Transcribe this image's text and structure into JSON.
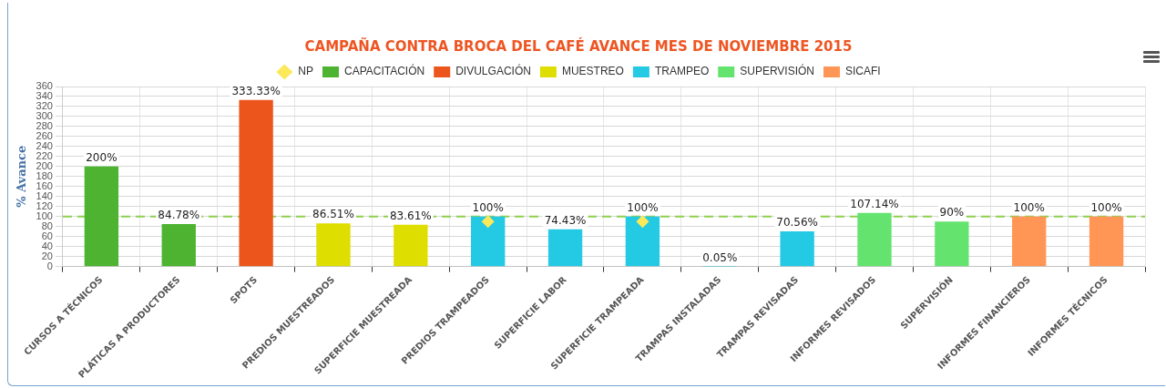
{
  "chart_data": {
    "type": "bar",
    "title": "CAMPAÑA CONTRA BROCA DEL CAFÉ AVANCE MES DE NOVIEMBRE 2015",
    "ylabel": "% Avance",
    "categories": [
      "CURSOS A TÉCNICOS",
      "PLÁTICAS A PRODUCTORES",
      "SPOTS",
      "PREDIOS MUESTREADOS",
      "SUPERFICIE MUESTREADA",
      "PREDIOS TRAMPEADOS",
      "SUPERFICIE LABOR",
      "SUPERFICIE TRAMPEADA",
      "TRAMPAS INSTALADAS",
      "TRAMPAS REVISADAS",
      "INFORMES REVISADOS",
      "SUPERVISIÓN",
      "INFORMES FINANCIEROS",
      "INFORMES TÉCNICOS"
    ],
    "series": [
      {
        "name": "CAPACITACIÓN",
        "color": "#4db331",
        "values": [
          200,
          84.78,
          null,
          null,
          null,
          null,
          null,
          null,
          null,
          null,
          null,
          null,
          null,
          null
        ],
        "value_labels": [
          "200%",
          "84.78%",
          null,
          null,
          null,
          null,
          null,
          null,
          null,
          null,
          null,
          null,
          null,
          null
        ]
      },
      {
        "name": "DIVULGACIÓN",
        "color": "#ec561c",
        "values": [
          null,
          null,
          333.33,
          null,
          null,
          null,
          null,
          null,
          null,
          null,
          null,
          null,
          null,
          null
        ],
        "value_labels": [
          null,
          null,
          "333.33%",
          null,
          null,
          null,
          null,
          null,
          null,
          null,
          null,
          null,
          null,
          null
        ]
      },
      {
        "name": "MUESTREO",
        "color": "#dede00",
        "values": [
          null,
          null,
          null,
          86.51,
          83.61,
          null,
          null,
          null,
          null,
          null,
          null,
          null,
          null,
          null
        ],
        "value_labels": [
          null,
          null,
          null,
          "86.51%",
          "83.61%",
          null,
          null,
          null,
          null,
          null,
          null,
          null,
          null,
          null
        ]
      },
      {
        "name": "TRAMPEO",
        "color": "#24cae3",
        "values": [
          null,
          null,
          null,
          null,
          null,
          100,
          74.43,
          100,
          0.05,
          70.56,
          null,
          null,
          null,
          null
        ],
        "value_labels": [
          null,
          null,
          null,
          null,
          null,
          "100%",
          "74.43%",
          "100%",
          "0.05%",
          "70.56%",
          null,
          null,
          null,
          null
        ]
      },
      {
        "name": "SUPERVISIÓN",
        "color": "#65e36f",
        "values": [
          null,
          null,
          null,
          null,
          null,
          null,
          null,
          null,
          null,
          null,
          107.14,
          90,
          null,
          null
        ],
        "value_labels": [
          null,
          null,
          null,
          null,
          null,
          null,
          null,
          null,
          null,
          null,
          "107.14%",
          "90%",
          null,
          null
        ]
      },
      {
        "name": "SICAFI",
        "color": "#ff9655",
        "values": [
          null,
          null,
          null,
          null,
          null,
          null,
          null,
          null,
          null,
          null,
          null,
          null,
          100,
          100
        ],
        "value_labels": [
          null,
          null,
          null,
          null,
          null,
          null,
          null,
          null,
          null,
          null,
          null,
          null,
          "100%",
          "100%"
        ]
      },
      {
        "name": "NP",
        "type": "scatter",
        "marker": "diamond",
        "color": "#fbe95a",
        "values": [
          null,
          null,
          null,
          null,
          null,
          90,
          null,
          90,
          null,
          null,
          null,
          null,
          null,
          null
        ]
      }
    ],
    "ylim": [
      0,
      360
    ],
    "yticks": [
      0,
      20,
      40,
      60,
      80,
      100,
      120,
      140,
      160,
      180,
      200,
      220,
      240,
      260,
      280,
      300,
      320,
      340,
      360
    ],
    "ref_lines": [
      {
        "axis": "y",
        "value": 100,
        "color": "#8ed04c",
        "line_style": "dashed"
      }
    ],
    "grid": true,
    "legend": "top"
  }
}
